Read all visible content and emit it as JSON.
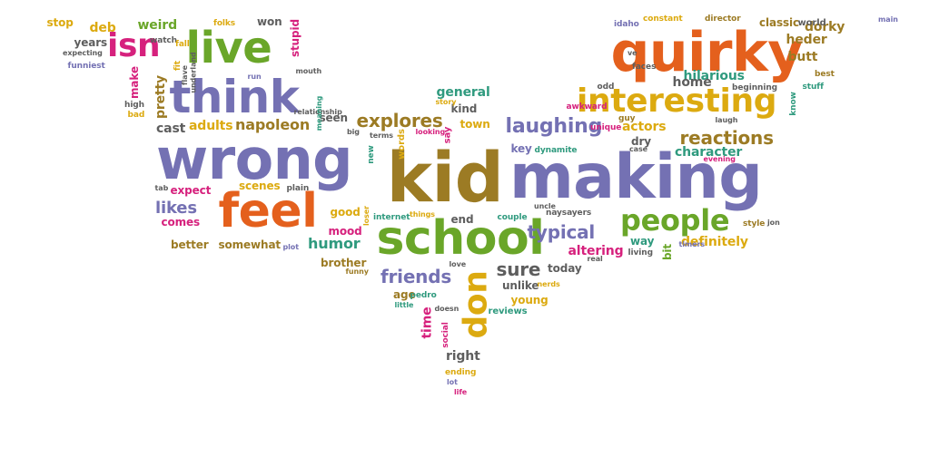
{
  "palette": {
    "purple": "#7471b3",
    "green": "#6aa629",
    "orange": "#e4601d",
    "gold": "#dcaa10",
    "teal": "#2f9a7e",
    "pink": "#d6217d",
    "olive": "#9c7b24",
    "gray": "#5e5e5e"
  },
  "words": [
    {
      "text": "kid",
      "color": "olive"
    },
    {
      "text": "making",
      "color": "purple"
    },
    {
      "text": "wrong",
      "color": "purple"
    },
    {
      "text": "quirky",
      "color": "orange"
    },
    {
      "text": "school",
      "color": "green"
    },
    {
      "text": "feel",
      "color": "orange"
    },
    {
      "text": "think",
      "color": "purple"
    },
    {
      "text": "live",
      "color": "green"
    },
    {
      "text": "interesting",
      "color": "gold"
    },
    {
      "text": "people",
      "color": "green"
    },
    {
      "text": "don",
      "color": "gold"
    },
    {
      "text": "isn",
      "color": "pink"
    },
    {
      "text": "laughing",
      "color": "purple"
    },
    {
      "text": "explores",
      "color": "olive"
    },
    {
      "text": "reactions",
      "color": "olive"
    },
    {
      "text": "typical",
      "color": "purple"
    },
    {
      "text": "friends",
      "color": "purple"
    },
    {
      "text": "sure",
      "color": "gray"
    },
    {
      "text": "humor",
      "color": "teal"
    },
    {
      "text": "likes",
      "color": "purple"
    },
    {
      "text": "napoleon",
      "color": "olive"
    },
    {
      "text": "hilarious",
      "color": "teal"
    },
    {
      "text": "heder",
      "color": "olive"
    },
    {
      "text": "dorky",
      "color": "olive"
    },
    {
      "text": "butt",
      "color": "olive"
    },
    {
      "text": "general",
      "color": "teal"
    },
    {
      "text": "home",
      "color": "gray"
    },
    {
      "text": "character",
      "color": "teal"
    },
    {
      "text": "actors",
      "color": "gold"
    },
    {
      "text": "definitely",
      "color": "gold"
    },
    {
      "text": "altering",
      "color": "pink"
    },
    {
      "text": "time",
      "color": "pink"
    },
    {
      "text": "right",
      "color": "gray"
    },
    {
      "text": "weird",
      "color": "green"
    },
    {
      "text": "deb",
      "color": "gold"
    },
    {
      "text": "years",
      "color": "gray"
    },
    {
      "text": "stop",
      "color": "gold"
    },
    {
      "text": "stupid",
      "color": "pink"
    },
    {
      "text": "won",
      "color": "gray"
    },
    {
      "text": "pretty",
      "color": "olive"
    },
    {
      "text": "make",
      "color": "pink"
    },
    {
      "text": "cast",
      "color": "gray"
    },
    {
      "text": "adults",
      "color": "gold"
    },
    {
      "text": "better",
      "color": "olive"
    },
    {
      "text": "somewhat",
      "color": "olive"
    },
    {
      "text": "comes",
      "color": "pink"
    },
    {
      "text": "expect",
      "color": "pink"
    },
    {
      "text": "scenes",
      "color": "gold"
    },
    {
      "text": "good",
      "color": "gold"
    },
    {
      "text": "mood",
      "color": "pink"
    },
    {
      "text": "brother",
      "color": "olive"
    },
    {
      "text": "end",
      "color": "gray"
    },
    {
      "text": "key",
      "color": "purple"
    },
    {
      "text": "dry",
      "color": "gray"
    },
    {
      "text": "way",
      "color": "teal"
    },
    {
      "text": "bit",
      "color": "green"
    },
    {
      "text": "kind",
      "color": "gray"
    },
    {
      "text": "town",
      "color": "gold"
    },
    {
      "text": "seen",
      "color": "gray"
    },
    {
      "text": "words",
      "color": "gold"
    },
    {
      "text": "say",
      "color": "pink"
    },
    {
      "text": "today",
      "color": "gray"
    },
    {
      "text": "age",
      "color": "olive"
    },
    {
      "text": "unlike",
      "color": "gray"
    },
    {
      "text": "young",
      "color": "gold"
    },
    {
      "text": "reviews",
      "color": "teal"
    },
    {
      "text": "classic",
      "color": "olive"
    },
    {
      "text": "world",
      "color": "gray"
    },
    {
      "text": "director",
      "color": "olive"
    },
    {
      "text": "constant",
      "color": "gold"
    },
    {
      "text": "idaho",
      "color": "purple"
    },
    {
      "text": "faces",
      "color": "gray"
    },
    {
      "text": "odd",
      "color": "gray"
    },
    {
      "text": "beginning",
      "color": "gray"
    },
    {
      "text": "stuff",
      "color": "teal"
    },
    {
      "text": "best",
      "color": "olive"
    },
    {
      "text": "know",
      "color": "teal"
    },
    {
      "text": "awkward",
      "color": "pink"
    },
    {
      "text": "guy",
      "color": "olive"
    },
    {
      "text": "unique",
      "color": "pink"
    },
    {
      "text": "laugh",
      "color": "gray"
    },
    {
      "text": "case",
      "color": "gray"
    },
    {
      "text": "evening",
      "color": "pink"
    },
    {
      "text": "dynamite",
      "color": "teal"
    },
    {
      "text": "naysayers",
      "color": "gray"
    },
    {
      "text": "uncle",
      "color": "gray"
    },
    {
      "text": "couple",
      "color": "teal"
    },
    {
      "text": "style",
      "color": "olive"
    },
    {
      "text": "jon",
      "color": "gray"
    },
    {
      "text": "timers",
      "color": "purple"
    },
    {
      "text": "living",
      "color": "gray"
    },
    {
      "text": "real",
      "color": "gray"
    },
    {
      "text": "nerds",
      "color": "gold"
    },
    {
      "text": "internet",
      "color": "teal"
    },
    {
      "text": "things",
      "color": "gold"
    },
    {
      "text": "loser",
      "color": "gold"
    },
    {
      "text": "new",
      "color": "teal"
    },
    {
      "text": "looking",
      "color": "pink"
    },
    {
      "text": "terms",
      "color": "gray"
    },
    {
      "text": "story",
      "color": "gold"
    },
    {
      "text": "big",
      "color": "gray"
    },
    {
      "text": "relationship",
      "color": "gray"
    },
    {
      "text": "plain",
      "color": "gray"
    },
    {
      "text": "tab",
      "color": "gray"
    },
    {
      "text": "plot",
      "color": "purple"
    },
    {
      "text": "funny",
      "color": "olive"
    },
    {
      "text": "love",
      "color": "gray"
    },
    {
      "text": "pedro",
      "color": "teal"
    },
    {
      "text": "doesn",
      "color": "gray"
    },
    {
      "text": "little",
      "color": "teal"
    },
    {
      "text": "social",
      "color": "pink"
    },
    {
      "text": "ending",
      "color": "gold"
    },
    {
      "text": "lot",
      "color": "purple"
    },
    {
      "text": "life",
      "color": "pink"
    },
    {
      "text": "folks",
      "color": "gold"
    },
    {
      "text": "watch",
      "color": "gray"
    },
    {
      "text": "fall",
      "color": "gold"
    },
    {
      "text": "expecting",
      "color": "gray"
    },
    {
      "text": "funniest",
      "color": "purple"
    },
    {
      "text": "fit",
      "color": "gold"
    },
    {
      "text": "underland",
      "color": "gray"
    },
    {
      "text": "flave",
      "color": "gray"
    },
    {
      "text": "high",
      "color": "gray"
    },
    {
      "text": "bad",
      "color": "gold"
    },
    {
      "text": "run",
      "color": "purple"
    },
    {
      "text": "mouth",
      "color": "gray"
    },
    {
      "text": "meaning",
      "color": "teal"
    },
    {
      "text": "main",
      "color": "purple"
    },
    {
      "text": "ve",
      "color": "gray"
    }
  ]
}
